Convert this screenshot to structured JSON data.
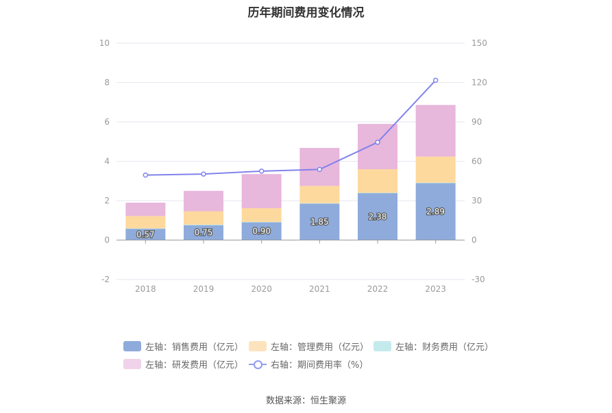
{
  "title": "历年期间费用变化情况",
  "source": "数据来源：恒生聚源",
  "chart_data": {
    "type": "bar",
    "stacked": true,
    "categories": [
      "2018",
      "2019",
      "2020",
      "2021",
      "2022",
      "2023"
    ],
    "left_axis": {
      "ylim": [
        -2,
        10
      ],
      "ticks": [
        "-2",
        "0",
        "2",
        "4",
        "6",
        "8",
        "10"
      ]
    },
    "right_axis": {
      "ylim": [
        -30,
        150
      ],
      "ticks": [
        "-30",
        "0",
        "30",
        "60",
        "90",
        "120",
        "150"
      ]
    },
    "grid": true,
    "legend_position": "bottom",
    "series": [
      {
        "name": "左轴：销售费用（亿元）",
        "axis": "left",
        "color": "#8eabdb",
        "values": [
          0.57,
          0.75,
          0.9,
          1.85,
          2.38,
          2.89
        ],
        "labels": [
          "0.57",
          "0.75",
          "0.90",
          "1.85",
          "2.38",
          "2.89"
        ]
      },
      {
        "name": "左轴：管理费用（亿元）",
        "axis": "left",
        "color": "#fdd99e",
        "values": [
          0.63,
          0.68,
          0.7,
          0.88,
          1.2,
          1.33
        ]
      },
      {
        "name": "左轴：财务费用（亿元）",
        "axis": "left",
        "color": "#b6e4e6",
        "values": [
          0.02,
          0.03,
          0.02,
          0.02,
          0.02,
          0.02
        ]
      },
      {
        "name": "左轴：研发费用（亿元）",
        "axis": "left",
        "color": "#e8b7dc",
        "values": [
          0.68,
          1.04,
          1.73,
          1.93,
          2.3,
          2.62
        ]
      },
      {
        "name": "右轴：期间费用率（%）",
        "axis": "right",
        "type": "line",
        "color": "#8082ec",
        "values": [
          49.5,
          50.3,
          52.5,
          53.8,
          74.5,
          121.7
        ]
      }
    ]
  }
}
